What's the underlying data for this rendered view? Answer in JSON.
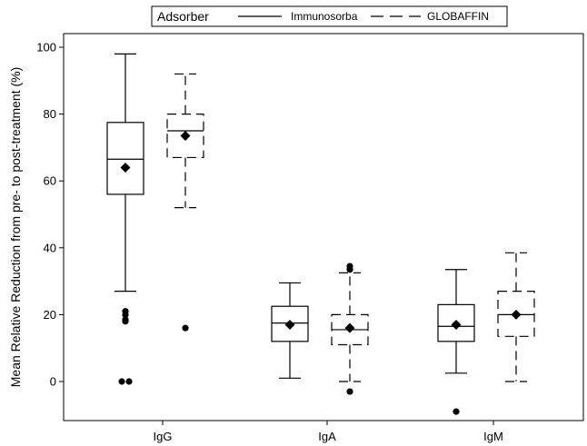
{
  "chart_data": {
    "type": "boxplot",
    "title": "",
    "xlabel": "",
    "ylabel": "Mean Relative Reduction from pre- to post-treatment (%)",
    "ylim": [
      -11,
      102
    ],
    "yticks": [
      0,
      20,
      40,
      60,
      80,
      100
    ],
    "categories": [
      "IgG",
      "IgA",
      "IgM"
    ],
    "legend": {
      "title": "Adsorber",
      "placement": "top-center",
      "entries": [
        {
          "name": "Immunosorba",
          "line_style": "solid"
        },
        {
          "name": "GLOBAFFIN",
          "line_style": "dashed"
        }
      ]
    },
    "grid": false,
    "series": [
      {
        "name": "Immunosorba",
        "line_style": "solid",
        "boxes": [
          {
            "category": "IgG",
            "whisker_low": 27,
            "q1": 56,
            "median": 66.5,
            "q3": 77.5,
            "whisker_high": 98,
            "mean": 64,
            "outliers": [
              21,
              20,
              18.5,
              18,
              0,
              0
            ]
          },
          {
            "category": "IgA",
            "whisker_low": 1,
            "q1": 12,
            "median": 17.5,
            "q3": 22.5,
            "whisker_high": 29.5,
            "mean": 17,
            "outliers": []
          },
          {
            "category": "IgM",
            "whisker_low": 2.5,
            "q1": 12,
            "median": 16.5,
            "q3": 23,
            "whisker_high": 33.5,
            "mean": 17,
            "outliers": [
              -9
            ]
          }
        ]
      },
      {
        "name": "GLOBAFFIN",
        "line_style": "dashed",
        "boxes": [
          {
            "category": "IgG",
            "whisker_low": 52,
            "q1": 67,
            "median": 75,
            "q3": 80,
            "whisker_high": 92,
            "mean": 73.5,
            "outliers": [
              16
            ]
          },
          {
            "category": "IgA",
            "whisker_low": 0,
            "q1": 11,
            "median": 15.5,
            "q3": 20,
            "whisker_high": 32.5,
            "mean": 16,
            "outliers": [
              34.5,
              33.5,
              -3
            ]
          },
          {
            "category": "IgM",
            "whisker_low": 0,
            "q1": 13.5,
            "median": 20,
            "q3": 27,
            "whisker_high": 38.5,
            "mean": 20,
            "outliers": []
          }
        ]
      }
    ]
  }
}
